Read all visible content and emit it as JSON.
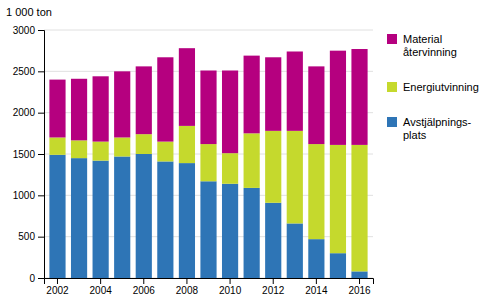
{
  "chart_data": {
    "type": "bar",
    "stacked": true,
    "ylabel": "1 000 ton",
    "categories": [
      "2002",
      null,
      "2004",
      null,
      "2006",
      null,
      "2008",
      null,
      "2010",
      null,
      "2012",
      null,
      "2014",
      null,
      "2016"
    ],
    "series": [
      {
        "name": "Avstjälpnings-\nplats",
        "color": "#2e75b6",
        "values": [
          1490,
          1450,
          1420,
          1470,
          1500,
          1410,
          1390,
          1170,
          1140,
          1090,
          910,
          660,
          470,
          300,
          80
        ]
      },
      {
        "name": "Energiutvinning",
        "color": "#c5d92d",
        "values": [
          210,
          215,
          230,
          230,
          240,
          240,
          450,
          450,
          370,
          660,
          870,
          1120,
          1150,
          1310,
          1530
        ]
      },
      {
        "name": "Material\nåtervinning",
        "color": "#b5007f",
        "values": [
          700,
          745,
          790,
          800,
          820,
          1020,
          940,
          890,
          1000,
          940,
          890,
          960,
          940,
          1140,
          1160
        ]
      }
    ],
    "ylim": [
      0,
      3000
    ],
    "yticks": [
      0,
      500,
      1000,
      1500,
      2000,
      2500,
      3000
    ],
    "grid": true,
    "legend": "right"
  }
}
